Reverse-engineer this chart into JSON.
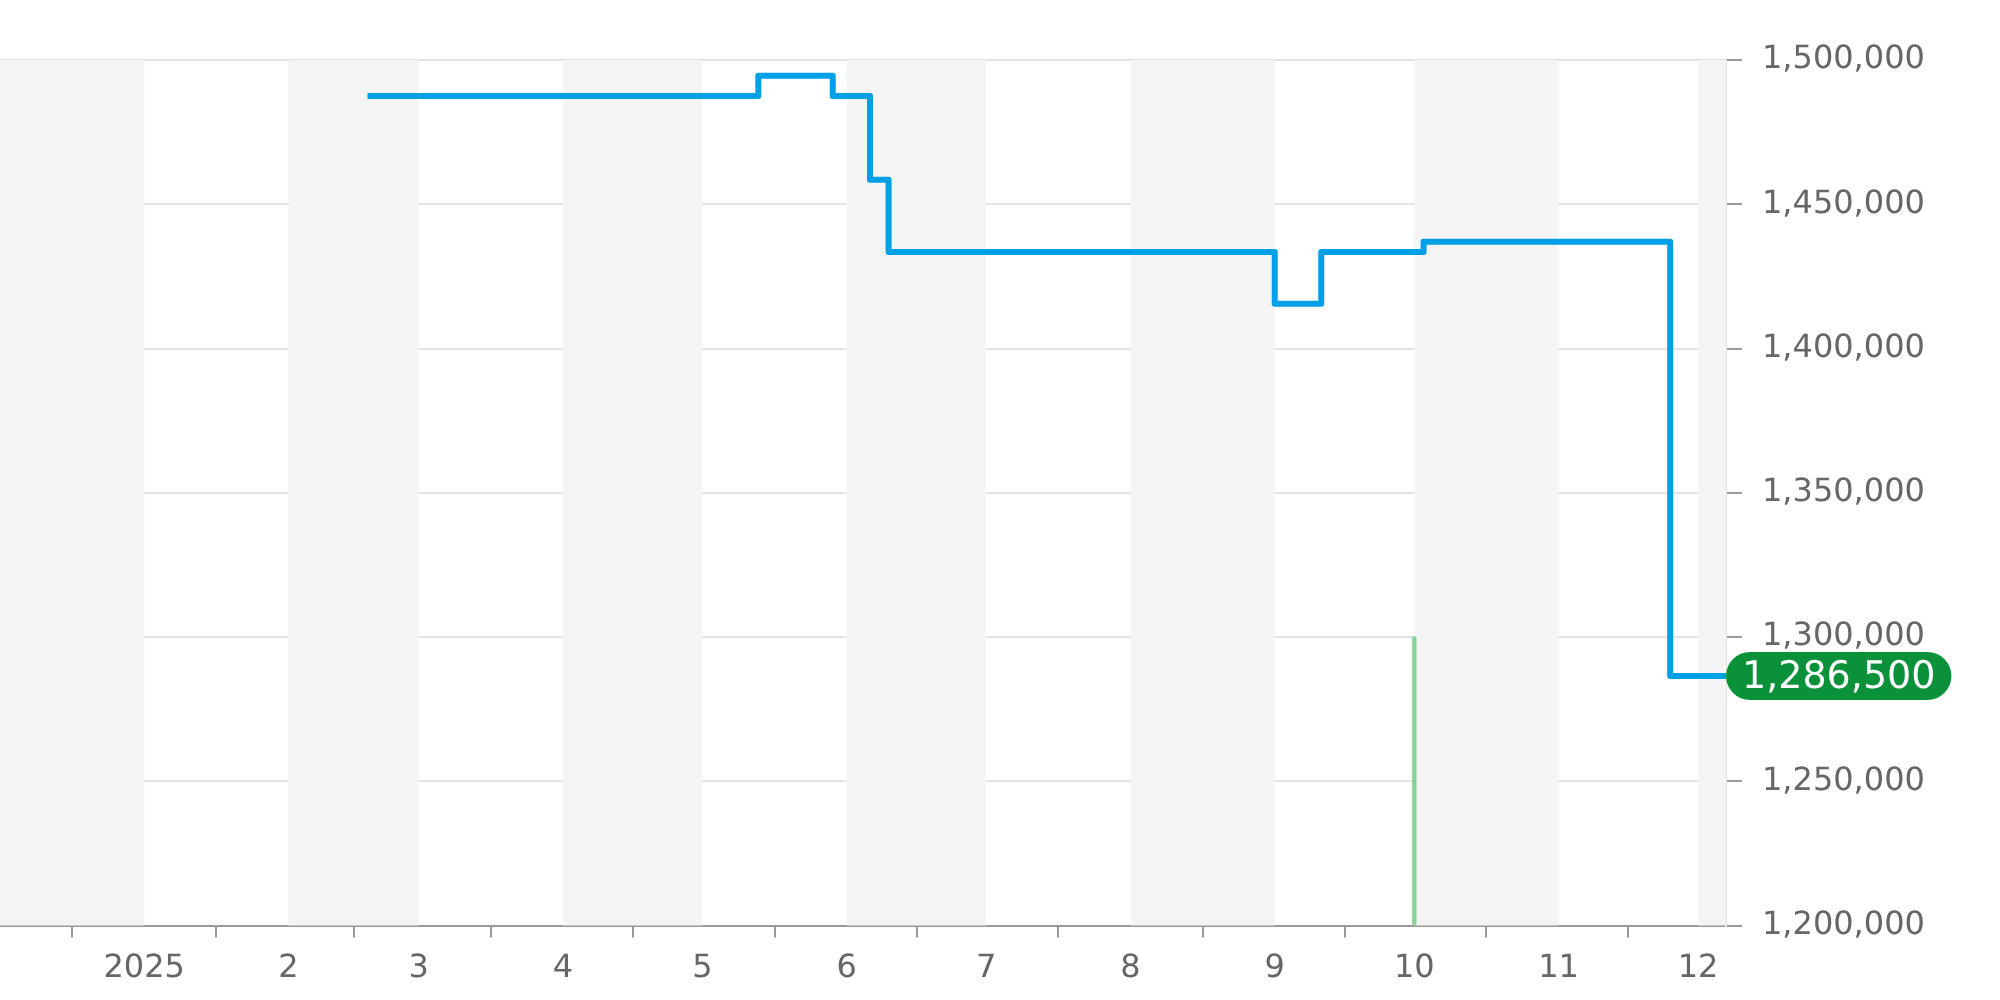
{
  "chart_data": {
    "type": "step",
    "xlim": [
      "2024-12-01",
      "2025-12-07"
    ],
    "xticks": [
      {
        "value": "2025-01-01",
        "label": "2025"
      },
      {
        "value": "2025-02-01",
        "label": "2"
      },
      {
        "value": "2025-03-01",
        "label": "3"
      },
      {
        "value": "2025-04-01",
        "label": "4"
      },
      {
        "value": "2025-05-01",
        "label": "5"
      },
      {
        "value": "2025-06-01",
        "label": "6"
      },
      {
        "value": "2025-07-01",
        "label": "7"
      },
      {
        "value": "2025-08-01",
        "label": "8"
      },
      {
        "value": "2025-09-01",
        "label": "9"
      },
      {
        "value": "2025-10-01",
        "label": "10"
      },
      {
        "value": "2025-11-01",
        "label": "11"
      },
      {
        "value": "2025-12-01",
        "label": "12"
      }
    ],
    "ylim": [
      1200000,
      1500000
    ],
    "yticks": [
      {
        "value": 1200000,
        "label": "1,200,000"
      },
      {
        "value": 1250000,
        "label": "1,250,000"
      },
      {
        "value": 1300000,
        "label": "1,300,000"
      },
      {
        "value": 1350000,
        "label": "1,350,000"
      },
      {
        "value": 1400000,
        "label": "1,400,000"
      },
      {
        "value": 1450000,
        "label": "1,450,000"
      },
      {
        "value": 1500000,
        "label": "1,500,000"
      }
    ],
    "series": [
      {
        "color": "#00a0e6",
        "x": [
          "2025-02-18",
          "2025-05-13",
          "2025-05-29",
          "2025-06-06",
          "2025-06-10",
          "2025-09-01",
          "2025-09-11",
          "2025-10-03",
          "2025-11-25",
          "2025-12-07"
        ],
        "values": [
          1487500,
          1494500,
          1487500,
          1458500,
          1433500,
          1415500,
          1433500,
          1437000,
          1286500,
          1286500
        ]
      },
      {
        "type": "bar",
        "color": "#86d197",
        "x": [
          "2025-10-01"
        ],
        "values": [
          1300000
        ]
      }
    ],
    "bands": [
      {
        "axis": "x",
        "from": "2024-12-01",
        "to": "2025-01-01",
        "color": "#f4f4f4"
      },
      {
        "axis": "x",
        "from": "2025-02-01",
        "to": "2025-03-01",
        "color": "#f4f4f4"
      },
      {
        "axis": "x",
        "from": "2025-04-01",
        "to": "2025-05-01",
        "color": "#f4f4f4"
      },
      {
        "axis": "x",
        "from": "2025-06-01",
        "to": "2025-07-01",
        "color": "#f4f4f4"
      },
      {
        "axis": "x",
        "from": "2025-08-01",
        "to": "2025-09-01",
        "color": "#f4f4f4"
      },
      {
        "axis": "x",
        "from": "2025-10-01",
        "to": "2025-11-01",
        "color": "#f4f4f4"
      },
      {
        "axis": "x",
        "from": "2025-12-01",
        "to": "2025-12-07",
        "color": "#f4f4f4"
      }
    ],
    "annotations": [
      {
        "text": "1,286,500",
        "x": "2025-12-07",
        "y": 1286500
      }
    ],
    "grid": "y",
    "legend": false,
    "marker": "none",
    "line_style": "solid"
  }
}
